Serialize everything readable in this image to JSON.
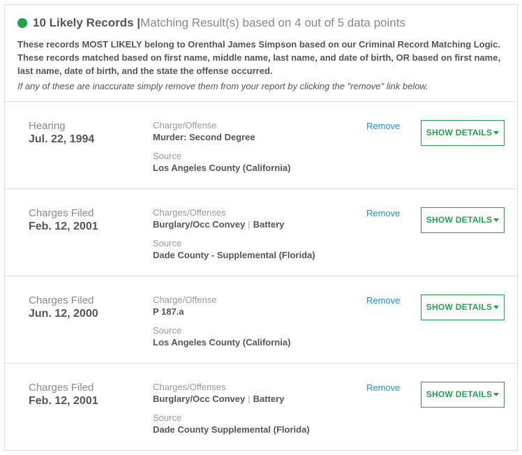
{
  "header": {
    "dot_color": "#1fa34a",
    "title_bold": "10 Likely Records |",
    "title_light": " Matching Result(s) based on 4 out of 5 data points",
    "explain": "These records MOST LIKELY belong to Orenthal James Simpson based on our Criminal Record Matching Logic. These records matched based on first name, middle name, last name, and date of birth, OR based on first name, last name, date of birth, and the state the offense occurred.",
    "note": "If any of these are inaccurate simply remove them from your report by clicking the \"remove\" link below."
  },
  "labels": {
    "remove": "Remove",
    "show_details": "SHOW DETAILS",
    "source": "Source"
  },
  "records": [
    {
      "type": "Hearing",
      "date": "Jul. 22, 1994",
      "charge_label": "Charge/Offense",
      "charges": [
        "Murder: Second Degree"
      ],
      "source": "Los Angeles County (California)"
    },
    {
      "type": "Charges Filed",
      "date": "Feb. 12, 2001",
      "charge_label": "Charges/Offenses",
      "charges": [
        "Burglary/Occ Convey",
        "Battery"
      ],
      "source": "Dade County - Supplemental (Florida)"
    },
    {
      "type": "Charges Filed",
      "date": "Jun. 12, 2000",
      "charge_label": "Charge/Offense",
      "charges": [
        "P 187.a"
      ],
      "source": "Los Angeles County (California)"
    },
    {
      "type": "Charges Filed",
      "date": "Feb. 12, 2001",
      "charge_label": "Charges/Offenses",
      "charges": [
        "Burglary/Occ Convey",
        "Battery"
      ],
      "source": "Dade County Supplemental (Florida)"
    }
  ]
}
